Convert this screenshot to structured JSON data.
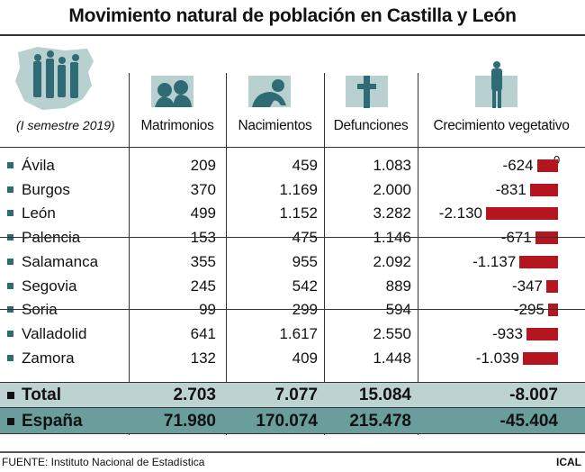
{
  "title": "Movimiento natural de población en Castilla y León",
  "period": "(I semestre 2019)",
  "columns": [
    "Matrimonios",
    "Nacimientos",
    "Defunciones",
    "Crecimiento vegetativo"
  ],
  "zero_label": "0",
  "rows": [
    {
      "name": "Ávila",
      "m": "209",
      "n": "459",
      "d": "1.083",
      "c": "-624"
    },
    {
      "name": "Burgos",
      "m": "370",
      "n": "1.169",
      "d": "2.000",
      "c": "-831"
    },
    {
      "name": "León",
      "m": "499",
      "n": "1.152",
      "d": "3.282",
      "c": "-2.130"
    },
    {
      "name": "Palencia",
      "m": "153",
      "n": "475",
      "d": "1.146",
      "c": "-671"
    },
    {
      "name": "Salamanca",
      "m": "355",
      "n": "955",
      "d": "2.092",
      "c": "-1.137"
    },
    {
      "name": "Segovia",
      "m": "245",
      "n": "542",
      "d": "889",
      "c": "-347"
    },
    {
      "name": "Soria",
      "m": "99",
      "n": "299",
      "d": "594",
      "c": "-295"
    },
    {
      "name": "Valladolid",
      "m": "641",
      "n": "1.617",
      "d": "2.550",
      "c": "-933"
    },
    {
      "name": "Zamora",
      "m": "132",
      "n": "409",
      "d": "1.448",
      "c": "-1.039"
    }
  ],
  "total": {
    "name": "Total",
    "m": "2.703",
    "n": "7.077",
    "d": "15.084",
    "c": "-8.007"
  },
  "spain": {
    "name": "España",
    "m": "71.980",
    "n": "170.074",
    "d": "215.478",
    "c": "-45.404"
  },
  "footer": {
    "source": "FUENTE: Instituto Nacional de Estadística",
    "brand": "ICAL"
  },
  "colors": {
    "accent": "#2f6b74",
    "light": "#b8d0d0",
    "bar": "#b5151f",
    "total_bg": "#bcd3d1",
    "spain_bg": "#6a9e9c"
  },
  "chart_data": {
    "type": "bar",
    "categories": [
      "Ávila",
      "Burgos",
      "León",
      "Palencia",
      "Salamanca",
      "Segovia",
      "Soria",
      "Valladolid",
      "Zamora"
    ],
    "values": [
      -624,
      -831,
      -2130,
      -671,
      -1137,
      -347,
      -295,
      -933,
      -1039
    ],
    "title": "Crecimiento vegetativo",
    "xlim": [
      -2130,
      0
    ]
  }
}
